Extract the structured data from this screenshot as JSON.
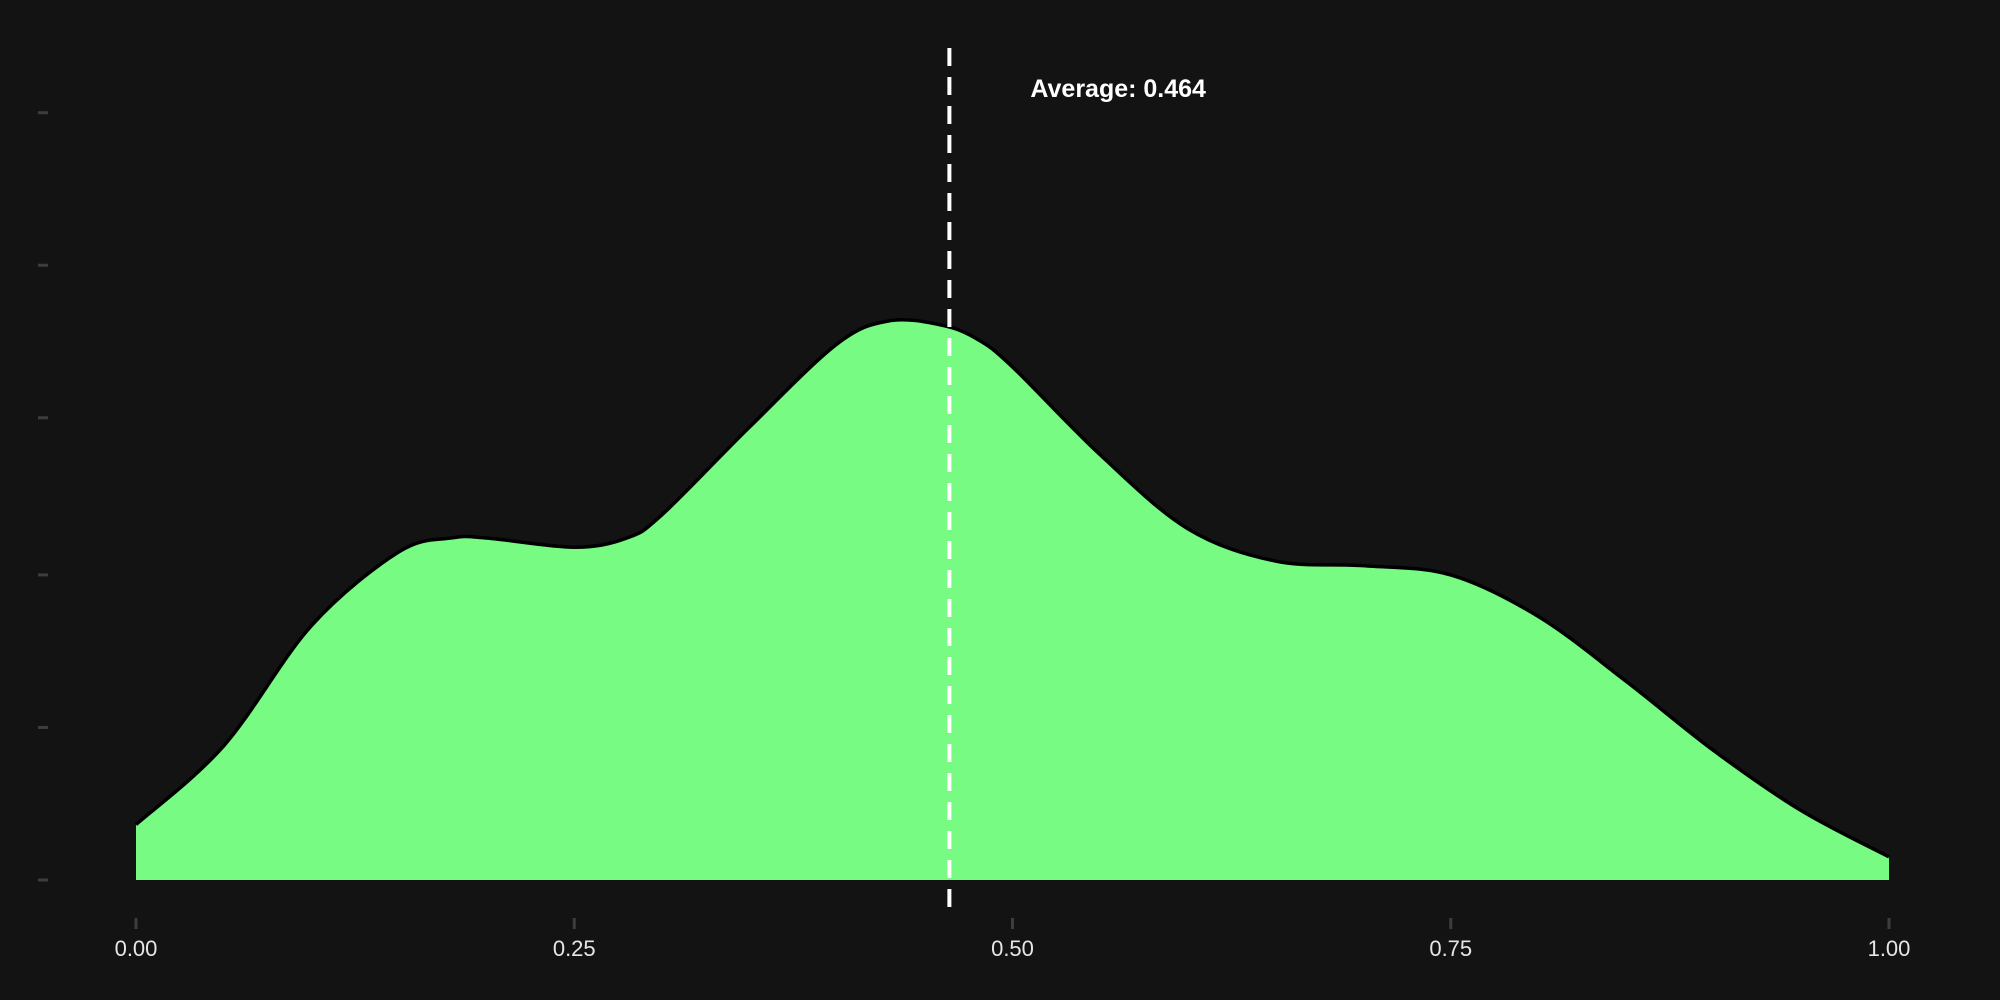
{
  "chart_data": {
    "type": "area",
    "title": "",
    "xlabel": "",
    "ylabel": "",
    "xlim": [
      0,
      1
    ],
    "ylim": [
      0,
      1.8
    ],
    "x_ticks": [
      0,
      0.25,
      0.5,
      0.75,
      1.0
    ],
    "x_tick_labels": [
      "0.00",
      "0.25",
      "0.50",
      "0.75",
      "1.00"
    ],
    "y_ticks": [
      0,
      0.33,
      0.66,
      1.0,
      1.33,
      1.66
    ],
    "y_tick_labels_visible": false,
    "grid": false,
    "legend": "none",
    "series": [
      {
        "x": [
          0.0,
          0.05,
          0.1,
          0.15,
          0.18,
          0.2,
          0.25,
          0.28,
          0.3,
          0.35,
          0.4,
          0.43,
          0.46,
          0.48,
          0.5,
          0.55,
          0.6,
          0.65,
          0.7,
          0.75,
          0.8,
          0.85,
          0.9,
          0.95,
          1.0
        ],
        "y": [
          0.12,
          0.29,
          0.55,
          0.71,
          0.74,
          0.74,
          0.72,
          0.74,
          0.79,
          0.98,
          1.16,
          1.21,
          1.2,
          1.17,
          1.11,
          0.92,
          0.76,
          0.69,
          0.68,
          0.66,
          0.57,
          0.43,
          0.28,
          0.15,
          0.05
        ],
        "fill_color": "#77fb82",
        "line_color": "#000000"
      }
    ],
    "annotations": [
      {
        "type": "vline",
        "x": 0.464,
        "label": "Average: 0.464",
        "line_color": "#ffffff",
        "dashed": true
      }
    ],
    "background_color": "#131313"
  }
}
